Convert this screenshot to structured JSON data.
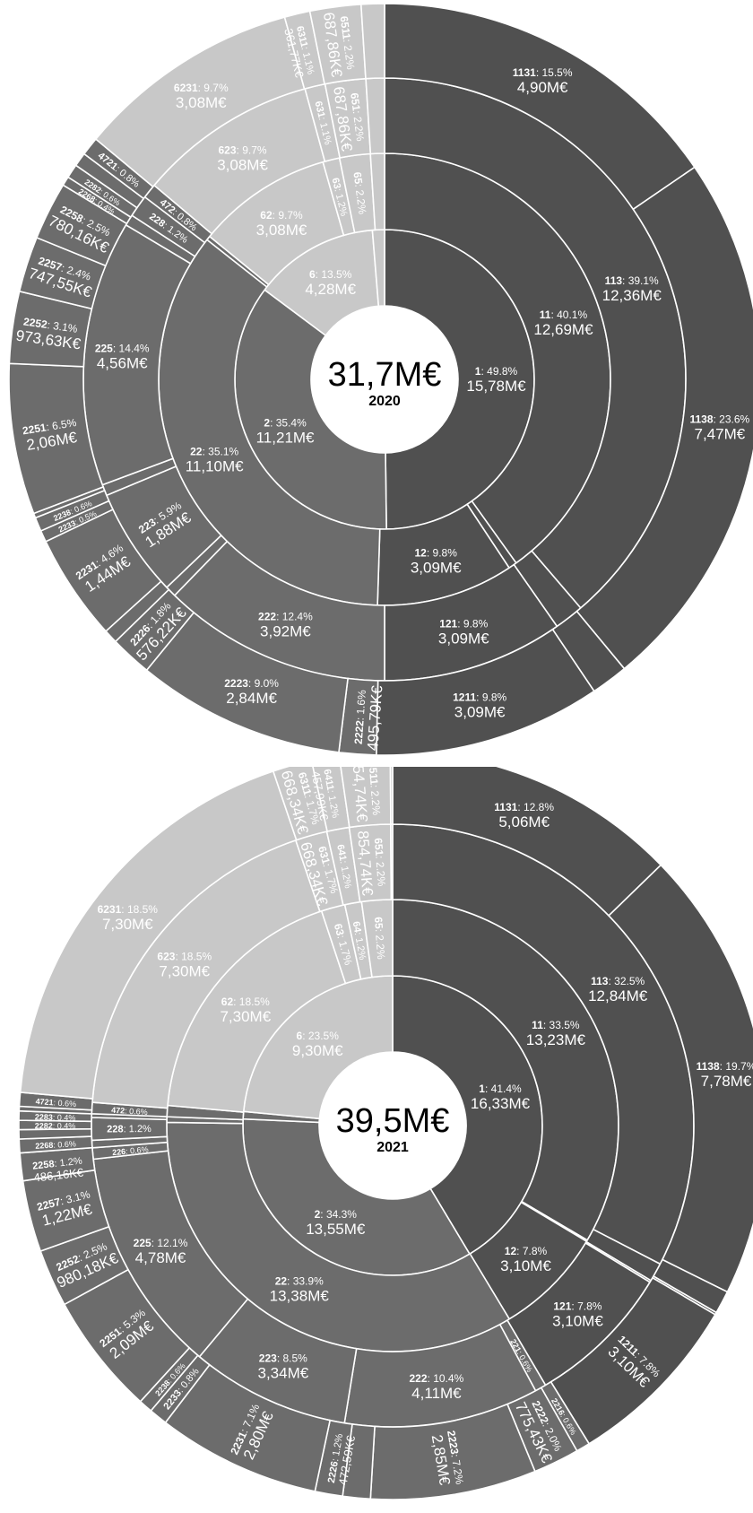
{
  "chart_data": [
    {
      "type": "sunburst",
      "center_total": "31,7M€",
      "center_year": "2020",
      "colors": {
        "1": "#505050",
        "2": "#6c6c6c",
        "6": "#c8c8c8"
      },
      "rings": [
        [
          {
            "code": "1",
            "pct": 49.8,
            "amount": "15,78M€",
            "label": true
          },
          {
            "code": "2",
            "pct": 35.4,
            "amount": "11,21M€",
            "label": true
          },
          {
            "code": "6",
            "pct": 13.5,
            "amount": "4,28M€",
            "label": true
          },
          {
            "code": "",
            "pct": 1.3,
            "amount": "",
            "label": false
          }
        ],
        [
          {
            "code": "11",
            "pct": 40.1,
            "amount": "12,69M€",
            "label": true
          },
          {
            "code": "",
            "pct": 0.6,
            "amount": "",
            "label": false
          },
          {
            "code": "12",
            "pct": 9.8,
            "amount": "3,09M€",
            "label": true
          },
          {
            "code": "22",
            "pct": 35.1,
            "amount": "11,10M€",
            "label": true
          },
          {
            "code": "",
            "pct": 0.3,
            "amount": "",
            "label": false
          },
          {
            "code": "62",
            "pct": 9.7,
            "amount": "3,08M€",
            "label": true
          },
          {
            "code": "63",
            "pct": 1.2,
            "amount": "",
            "label": true
          },
          {
            "code": "65",
            "pct": 2.2,
            "amount": "",
            "label": true
          },
          {
            "code": "",
            "pct": 1.0,
            "amount": "",
            "label": false
          }
        ],
        [
          {
            "code": "113",
            "pct": 39.1,
            "amount": "12,36M€",
            "label": true
          },
          {
            "code": "",
            "pct": 1.6,
            "amount": "",
            "label": false
          },
          {
            "code": "121",
            "pct": 9.8,
            "amount": "3,09M€",
            "label": true
          },
          {
            "code": "222",
            "pct": 12.4,
            "amount": "3,92M€",
            "label": true
          },
          {
            "code": "",
            "pct": 0.6,
            "amount": "",
            "label": false
          },
          {
            "code": "223",
            "pct": 5.9,
            "amount": "1,88M€",
            "label": true
          },
          {
            "code": "",
            "pct": 0.6,
            "amount": "",
            "label": false
          },
          {
            "code": "225",
            "pct": 14.4,
            "amount": "4,56M€",
            "label": true
          },
          {
            "code": "",
            "pct": 0.6,
            "amount": "",
            "label": false
          },
          {
            "code": "228",
            "pct": 1.2,
            "amount": "",
            "label": true
          },
          {
            "code": "472",
            "pct": 0.8,
            "amount": "",
            "label": true
          },
          {
            "code": "623",
            "pct": 9.7,
            "amount": "3,08M€",
            "label": true
          },
          {
            "code": "631",
            "pct": 1.1,
            "amount": "",
            "label": true
          },
          {
            "code": "651",
            "pct": 2.2,
            "amount": "687,86K€",
            "label": true
          },
          {
            "code": "",
            "pct": 1.0,
            "amount": "",
            "label": false
          }
        ],
        [
          {
            "code": "1131",
            "pct": 15.5,
            "amount": "4,90M€",
            "label": true
          },
          {
            "code": "1138",
            "pct": 23.6,
            "amount": "7,47M€",
            "label": true
          },
          {
            "code": "",
            "pct": 1.6,
            "amount": "",
            "label": false
          },
          {
            "code": "1211",
            "pct": 9.8,
            "amount": "3,09M€",
            "label": true
          },
          {
            "code": "2222",
            "pct": 1.6,
            "amount": "495,79K€",
            "label": true
          },
          {
            "code": "2223",
            "pct": 9.0,
            "amount": "2,84M€",
            "label": true
          },
          {
            "code": "2226",
            "pct": 1.8,
            "amount": "576,22K€",
            "label": true
          },
          {
            "code": "",
            "pct": 0.6,
            "amount": "",
            "label": false
          },
          {
            "code": "2231",
            "pct": 4.6,
            "amount": "1,44M€",
            "label": true
          },
          {
            "code": "2233",
            "pct": 0.5,
            "amount": "",
            "label": true
          },
          {
            "code": "2238",
            "pct": 0.6,
            "amount": "",
            "label": true
          },
          {
            "code": "",
            "pct": 0.2,
            "amount": "",
            "label": false
          },
          {
            "code": "2251",
            "pct": 6.5,
            "amount": "2,06M€",
            "label": true
          },
          {
            "code": "2252",
            "pct": 3.1,
            "amount": "973,63K€",
            "label": true
          },
          {
            "code": "2257",
            "pct": 2.4,
            "amount": "747,55K€",
            "label": true
          },
          {
            "code": "2258",
            "pct": 2.5,
            "amount": "780,16K€",
            "label": true
          },
          {
            "code": "2268",
            "pct": 0.4,
            "amount": "",
            "label": true
          },
          {
            "code": "2282",
            "pct": 0.6,
            "amount": "",
            "label": true
          },
          {
            "code": "",
            "pct": 0.6,
            "amount": "",
            "label": false
          },
          {
            "code": "4721",
            "pct": 0.8,
            "amount": "",
            "label": true
          },
          {
            "code": "6231",
            "pct": 9.7,
            "amount": "3,08M€",
            "label": true
          },
          {
            "code": "6311",
            "pct": 1.1,
            "amount": "361,77K€",
            "label": true
          },
          {
            "code": "6511",
            "pct": 2.2,
            "amount": "687,86K€",
            "label": true
          },
          {
            "code": "",
            "pct": 1.0,
            "amount": "",
            "label": false
          }
        ]
      ]
    },
    {
      "type": "sunburst",
      "center_total": "39,5M€",
      "center_year": "2021",
      "colors": {
        "1": "#505050",
        "2": "#6c6c6c",
        "6": "#c8c8c8"
      },
      "rings": [
        [
          {
            "code": "1",
            "pct": 41.4,
            "amount": "16,33M€",
            "label": true
          },
          {
            "code": "2",
            "pct": 34.3,
            "amount": "13,55M€",
            "label": true
          },
          {
            "code": "",
            "pct": 0.8,
            "amount": "",
            "label": false
          },
          {
            "code": "6",
            "pct": 23.5,
            "amount": "9,30M€",
            "label": true
          }
        ],
        [
          {
            "code": "11",
            "pct": 33.5,
            "amount": "13,23M€",
            "label": true
          },
          {
            "code": "",
            "pct": 0.1,
            "amount": "",
            "label": false
          },
          {
            "code": "12",
            "pct": 7.8,
            "amount": "3,10M€",
            "label": true
          },
          {
            "code": "22",
            "pct": 33.9,
            "amount": "13,38M€",
            "label": true
          },
          {
            "code": "",
            "pct": 0.4,
            "amount": "",
            "label": false
          },
          {
            "code": "",
            "pct": 0.8,
            "amount": "",
            "label": false
          },
          {
            "code": "62",
            "pct": 18.5,
            "amount": "7,30M€",
            "label": true
          },
          {
            "code": "63",
            "pct": 1.7,
            "amount": "",
            "label": true
          },
          {
            "code": "64",
            "pct": 1.2,
            "amount": "",
            "label": true
          },
          {
            "code": "65",
            "pct": 2.2,
            "amount": "",
            "label": true
          }
        ],
        [
          {
            "code": "113",
            "pct": 32.5,
            "amount": "12,84M€",
            "label": true
          },
          {
            "code": "",
            "pct": 1.0,
            "amount": "",
            "label": false
          },
          {
            "code": "",
            "pct": 0.1,
            "amount": "",
            "label": false
          },
          {
            "code": "121",
            "pct": 7.8,
            "amount": "3,10M€",
            "label": true
          },
          {
            "code": "221",
            "pct": 0.6,
            "amount": "",
            "label": true
          },
          {
            "code": "222",
            "pct": 10.4,
            "amount": "4,11M€",
            "label": true
          },
          {
            "code": "223",
            "pct": 8.5,
            "amount": "3,34M€",
            "label": true
          },
          {
            "code": "225",
            "pct": 12.1,
            "amount": "4,78M€",
            "label": true
          },
          {
            "code": "226",
            "pct": 0.6,
            "amount": "",
            "label": true
          },
          {
            "code": "",
            "pct": 0.4,
            "amount": "",
            "label": false
          },
          {
            "code": "228",
            "pct": 1.2,
            "amount": "",
            "label": true
          },
          {
            "code": "",
            "pct": 0.2,
            "amount": "",
            "label": false
          },
          {
            "code": "472",
            "pct": 0.6,
            "amount": "",
            "label": true
          },
          {
            "code": "623",
            "pct": 18.5,
            "amount": "7,30M€",
            "label": true
          },
          {
            "code": "631",
            "pct": 1.7,
            "amount": "668,34K€",
            "label": true
          },
          {
            "code": "641",
            "pct": 1.2,
            "amount": "",
            "label": true
          },
          {
            "code": "651",
            "pct": 2.2,
            "amount": "854,74K€",
            "label": true
          },
          {
            "code": "",
            "pct": 0.1,
            "amount": "",
            "label": false
          }
        ],
        [
          {
            "code": "1131",
            "pct": 12.8,
            "amount": "5,06M€",
            "label": true
          },
          {
            "code": "1138",
            "pct": 19.7,
            "amount": "7,78M€",
            "label": true
          },
          {
            "code": "",
            "pct": 1.0,
            "amount": "",
            "label": false
          },
          {
            "code": "",
            "pct": 0.1,
            "amount": "",
            "label": false
          },
          {
            "code": "1211",
            "pct": 7.8,
            "amount": "3,10M€",
            "label": true
          },
          {
            "code": "2216",
            "pct": 0.6,
            "amount": "",
            "label": true
          },
          {
            "code": "2222",
            "pct": 2.0,
            "amount": "775,43K€",
            "label": true
          },
          {
            "code": "2223",
            "pct": 7.2,
            "amount": "2,85M€",
            "label": true
          },
          {
            "code": "",
            "pct": 1.2,
            "amount": "",
            "label": false
          },
          {
            "code": "2226",
            "pct": 1.2,
            "amount": "472,59K€",
            "label": true
          },
          {
            "code": "2231",
            "pct": 7.1,
            "amount": "2,80M€",
            "label": true
          },
          {
            "code": "2233",
            "pct": 0.8,
            "amount": "",
            "label": true
          },
          {
            "code": "2238",
            "pct": 0.6,
            "amount": "",
            "label": true
          },
          {
            "code": "2251",
            "pct": 5.3,
            "amount": "2,09M€",
            "label": true
          },
          {
            "code": "2252",
            "pct": 2.5,
            "amount": "980,18K€",
            "label": true
          },
          {
            "code": "2257",
            "pct": 3.1,
            "amount": "1,22M€",
            "label": true
          },
          {
            "code": "2258",
            "pct": 1.2,
            "amount": "486,16K€",
            "label": true
          },
          {
            "code": "2268",
            "pct": 0.6,
            "amount": "",
            "label": true
          },
          {
            "code": "",
            "pct": 0.4,
            "amount": "",
            "label": false
          },
          {
            "code": "2282",
            "pct": 0.4,
            "amount": "",
            "label": true
          },
          {
            "code": "2283",
            "pct": 0.4,
            "amount": "",
            "label": true
          },
          {
            "code": "",
            "pct": 0.2,
            "amount": "",
            "label": false
          },
          {
            "code": "4721",
            "pct": 0.6,
            "amount": "",
            "label": true
          },
          {
            "code": "6231",
            "pct": 18.5,
            "amount": "7,30M€",
            "label": true
          },
          {
            "code": "6311",
            "pct": 1.7,
            "amount": "668,34K€",
            "label": true
          },
          {
            "code": "6411",
            "pct": 1.2,
            "amount": "457,99K€",
            "label": true
          },
          {
            "code": "6511",
            "pct": 2.2,
            "amount": "854,74K€",
            "label": true
          },
          {
            "code": "",
            "pct": 0.1,
            "amount": "",
            "label": false
          }
        ]
      ]
    }
  ]
}
